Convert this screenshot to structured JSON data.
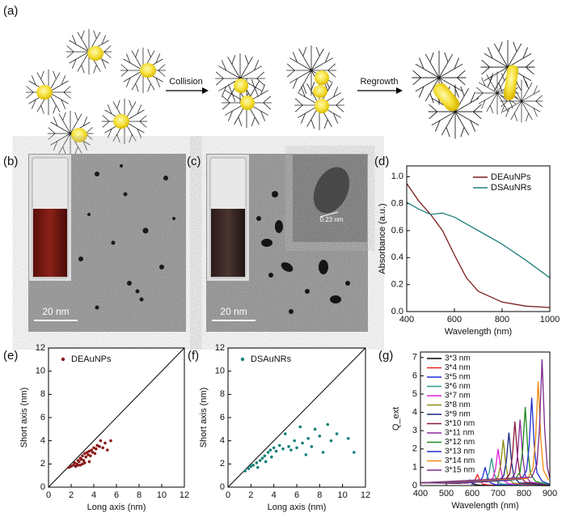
{
  "panel_labels": [
    "(a)",
    "(b)",
    "(c)",
    "(d)",
    "(e)",
    "(f)",
    "(g)"
  ],
  "schematic": {
    "steps": [
      "Collision",
      "Regrowth"
    ]
  },
  "micrographs": [
    {
      "scale_bar": "20 nm"
    },
    {
      "scale_bar": "20 nm",
      "inset_label": "0.23 nm"
    }
  ],
  "chart_data": [
    {
      "type": "line",
      "xlabel": "Wavelength (nm)",
      "ylabel": "Absorbance (a.u.)",
      "xlim": [
        400,
        1000
      ],
      "xticks": [
        400,
        600,
        800,
        1000
      ],
      "ylim": [
        0,
        1.08
      ],
      "yticks": [
        {
          "value": 0,
          "label": "0.0"
        },
        0.2,
        0.4,
        0.6,
        0.8,
        {
          "value": 1,
          "label": "1.0"
        }
      ],
      "legend": "upper-right",
      "x": [
        400,
        450,
        500,
        550,
        600,
        650,
        700,
        800,
        900,
        1000
      ],
      "series": [
        {
          "name": "DEAuNPs",
          "color": "#7a1c1c",
          "values": [
            0.95,
            0.82,
            0.72,
            0.6,
            0.42,
            0.25,
            0.15,
            0.07,
            0.04,
            0.03
          ]
        },
        {
          "name": "DSAuNRs",
          "color": "#1f7f7a",
          "values": [
            0.81,
            0.76,
            0.72,
            0.73,
            0.7,
            0.65,
            0.6,
            0.5,
            0.38,
            0.25
          ]
        }
      ]
    },
    {
      "type": "scatter",
      "xlabel": "Long axis (nm)",
      "ylabel": "Short axis (nm)",
      "xlim": [
        0,
        12
      ],
      "xticks": [
        0,
        2,
        4,
        6,
        8,
        10,
        12
      ],
      "ylim": [
        0,
        12
      ],
      "yticks": [
        0,
        2,
        4,
        6,
        8,
        10,
        12
      ],
      "legend": "upper-left",
      "series": [
        {
          "name": "DEAuNPs",
          "color": "#8b1a1a",
          "x": [
            1.8,
            2.0,
            2.2,
            2.3,
            2.5,
            2.6,
            2.7,
            2.8,
            2.9,
            3.0,
            3.1,
            3.2,
            3.3,
            3.4,
            3.5,
            3.6,
            3.7,
            3.8,
            3.9,
            4.0,
            4.1,
            4.2,
            4.3,
            4.5,
            4.6,
            4.8,
            5.0,
            5.2,
            5.5,
            2.4,
            2.8,
            3.2,
            3.6,
            3.0,
            2.6
          ],
          "values": [
            1.7,
            1.8,
            1.9,
            2.1,
            2.0,
            2.3,
            2.2,
            2.5,
            2.4,
            2.7,
            2.3,
            2.9,
            2.6,
            3.0,
            2.8,
            3.1,
            2.7,
            3.2,
            3.0,
            3.4,
            2.9,
            3.3,
            3.6,
            3.5,
            4.0,
            3.4,
            3.8,
            3.2,
            4.0,
            1.8,
            1.9,
            2.1,
            2.2,
            2.0,
            1.9
          ]
        }
      ]
    },
    {
      "type": "scatter",
      "xlabel": "Long axis (nm)",
      "ylabel": "Short axis (nm)",
      "xlim": [
        0,
        12
      ],
      "xticks": [
        0,
        2,
        4,
        6,
        8,
        10,
        12
      ],
      "ylim": [
        0,
        12
      ],
      "yticks": [
        0,
        2,
        4,
        6,
        8,
        10,
        12
      ],
      "legend": "upper-left",
      "series": [
        {
          "name": "DSAuNRs",
          "color": "#14827a",
          "x": [
            1.5,
            1.8,
            2.0,
            2.2,
            2.5,
            2.8,
            3.0,
            3.2,
            3.5,
            3.7,
            4.0,
            4.2,
            4.5,
            4.8,
            5.0,
            5.3,
            5.5,
            5.8,
            6.0,
            6.3,
            6.5,
            6.8,
            7.0,
            7.3,
            7.6,
            8.0,
            8.3,
            8.7,
            9.0,
            9.5,
            10.5,
            11.0,
            2.6,
            3.3,
            3.8
          ],
          "values": [
            1.4,
            1.6,
            1.8,
            1.9,
            2.1,
            2.3,
            2.5,
            2.7,
            3.0,
            3.2,
            3.4,
            3.1,
            3.6,
            3.3,
            4.6,
            3.5,
            3.2,
            4.0,
            3.4,
            5.2,
            3.8,
            2.8,
            4.2,
            3.5,
            5.0,
            4.4,
            3.0,
            5.4,
            4.0,
            4.6,
            4.2,
            3.0,
            1.7,
            2.2,
            2.6
          ]
        }
      ]
    },
    {
      "type": "line",
      "xlabel": "Wavelength (nm)",
      "ylabel": "Q_ext",
      "xlim": [
        400,
        900
      ],
      "xticks": [
        400,
        500,
        600,
        700,
        800,
        900
      ],
      "ylim": [
        0,
        7.3
      ],
      "yticks": [
        0,
        1,
        2,
        3,
        4,
        5,
        6,
        7
      ],
      "legend": "upper-left",
      "series": [
        {
          "name": "3*3 nm",
          "color": "#000000",
          "x": [
            400,
            550,
            570,
            580,
            590,
            600,
            610,
            630,
            900
          ],
          "values": [
            0.15,
            0.12,
            0.15,
            0.14,
            0.3,
            0.14,
            0.05,
            0.02,
            0
          ]
        },
        {
          "name": "3*4 nm",
          "color": "#e8221e",
          "x": [
            400,
            580,
            600,
            610,
            620,
            630,
            640,
            660,
            900
          ],
          "values": [
            0.15,
            0.13,
            0.19,
            0.27,
            0.6,
            0.27,
            0.09,
            0.03,
            0
          ]
        },
        {
          "name": "3*5 nm",
          "color": "#1f2fe0",
          "x": [
            400,
            610,
            630,
            640,
            650,
            660,
            670,
            690,
            900
          ],
          "values": [
            0.15,
            0.15,
            0.25,
            0.45,
            1.0,
            0.45,
            0.15,
            0.05,
            0
          ]
        },
        {
          "name": "3*6 nm",
          "color": "#2a9a8e",
          "x": [
            400,
            635,
            655,
            665,
            675,
            685,
            695,
            715,
            900
          ],
          "values": [
            0.15,
            0.18,
            0.33,
            0.68,
            1.5,
            0.68,
            0.23,
            0.08,
            0
          ]
        },
        {
          "name": "3*7 nm",
          "color": "#e020d8",
          "x": [
            400,
            660,
            680,
            690,
            700,
            710,
            720,
            740,
            900
          ],
          "values": [
            0.15,
            0.2,
            0.4,
            0.9,
            2.0,
            0.9,
            0.3,
            0.1,
            0
          ]
        },
        {
          "name": "3*8 nm",
          "color": "#8a8a10",
          "x": [
            400,
            680,
            700,
            710,
            720,
            730,
            740,
            760,
            900
          ],
          "values": [
            0.15,
            0.23,
            0.48,
            1.13,
            2.5,
            1.13,
            0.38,
            0.13,
            0
          ]
        },
        {
          "name": "3*9 nm",
          "color": "#1a2a80",
          "x": [
            400,
            702,
            722,
            732,
            742,
            752,
            762,
            782,
            900
          ],
          "values": [
            0.15,
            0.25,
            0.54,
            1.31,
            2.9,
            1.31,
            0.44,
            0.15,
            0
          ]
        },
        {
          "name": "3*10 nm",
          "color": "#8b1a3a",
          "x": [
            400,
            725,
            745,
            755,
            765,
            775,
            785,
            805,
            900
          ],
          "values": [
            0.15,
            0.28,
            0.63,
            1.58,
            3.5,
            1.58,
            0.53,
            0.18,
            0.02
          ]
        },
        {
          "name": "3*11 nm",
          "color": "#8a2a9a",
          "x": [
            400,
            745,
            765,
            775,
            785,
            795,
            805,
            825,
            900
          ],
          "values": [
            0.15,
            0.28,
            0.64,
            1.62,
            3.6,
            1.62,
            0.54,
            0.18,
            0.03
          ]
        },
        {
          "name": "3*12 nm",
          "color": "#1e8a1e",
          "x": [
            400,
            765,
            785,
            795,
            805,
            815,
            825,
            845,
            900
          ],
          "values": [
            0.15,
            0.32,
            0.75,
            1.94,
            4.3,
            1.94,
            0.65,
            0.22,
            0.04
          ]
        },
        {
          "name": "3*13 nm",
          "color": "#2030d0",
          "x": [
            400,
            790,
            810,
            820,
            830,
            840,
            850,
            870,
            900
          ],
          "values": [
            0.15,
            0.34,
            0.82,
            2.16,
            4.8,
            2.16,
            0.72,
            0.24,
            0.06
          ]
        },
        {
          "name": "3*14 nm",
          "color": "#f08a10",
          "x": [
            400,
            815,
            835,
            845,
            855,
            865,
            875,
            895
          ],
          "values": [
            0.15,
            0.39,
            0.96,
            2.57,
            5.7,
            2.57,
            0.86,
            0.29
          ]
        },
        {
          "name": "3*15 nm",
          "color": "#7a2a8a",
          "x": [
            400,
            830,
            850,
            860,
            870,
            880,
            890,
            900
          ],
          "values": [
            0.15,
            0.45,
            1.14,
            3.11,
            6.9,
            3.11,
            1.04,
            0.4
          ]
        }
      ]
    }
  ]
}
